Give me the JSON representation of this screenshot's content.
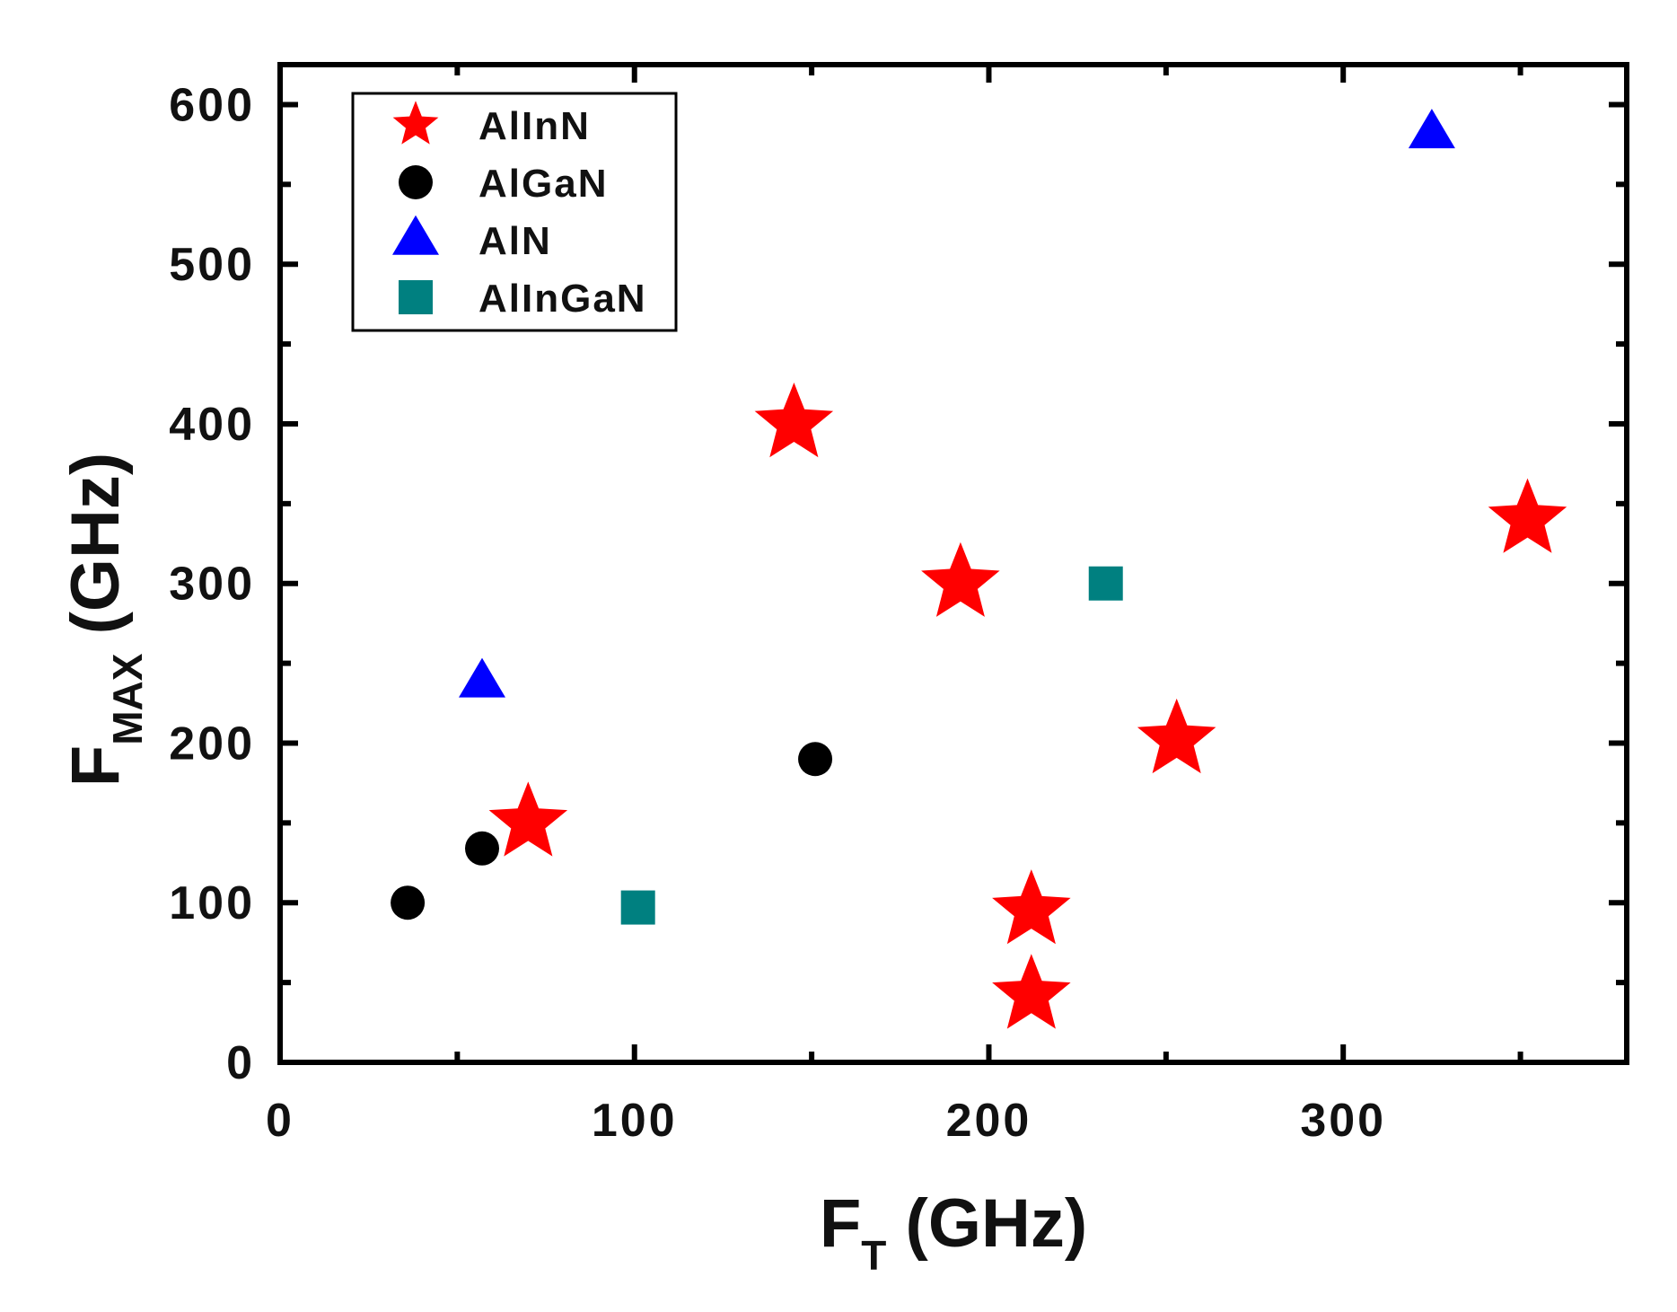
{
  "chart_data": {
    "type": "scatter",
    "xlabel": {
      "main": "F",
      "sub": "T",
      "unit": "(GHz)"
    },
    "ylabel": {
      "main": "F",
      "sub": "MAX",
      "unit": "(GHz)"
    },
    "xlim": [
      0,
      380
    ],
    "ylim": [
      0,
      625
    ],
    "x_ticks": [
      0,
      100,
      200,
      300
    ],
    "y_ticks": [
      0,
      100,
      200,
      300,
      400,
      500,
      600
    ],
    "grid": false,
    "legend_position": "top-left",
    "series": [
      {
        "name": "AlInN",
        "marker": "star",
        "color": "#ff0000",
        "points": [
          {
            "x": 70,
            "y": 150
          },
          {
            "x": 145,
            "y": 400
          },
          {
            "x": 192,
            "y": 300
          },
          {
            "x": 212,
            "y": 95
          },
          {
            "x": 212,
            "y": 42
          },
          {
            "x": 253,
            "y": 202
          },
          {
            "x": 352,
            "y": 340
          }
        ]
      },
      {
        "name": "AlGaN",
        "marker": "circle",
        "color": "#000000",
        "points": [
          {
            "x": 36,
            "y": 100
          },
          {
            "x": 57,
            "y": 134
          },
          {
            "x": 151,
            "y": 190
          }
        ]
      },
      {
        "name": "AlN",
        "marker": "triangle",
        "color": "#0000ff",
        "points": [
          {
            "x": 57,
            "y": 238
          },
          {
            "x": 325,
            "y": 582
          }
        ]
      },
      {
        "name": "AlInGaN",
        "marker": "square",
        "color": "#008080",
        "points": [
          {
            "x": 101,
            "y": 97
          },
          {
            "x": 233,
            "y": 300
          }
        ]
      }
    ]
  }
}
